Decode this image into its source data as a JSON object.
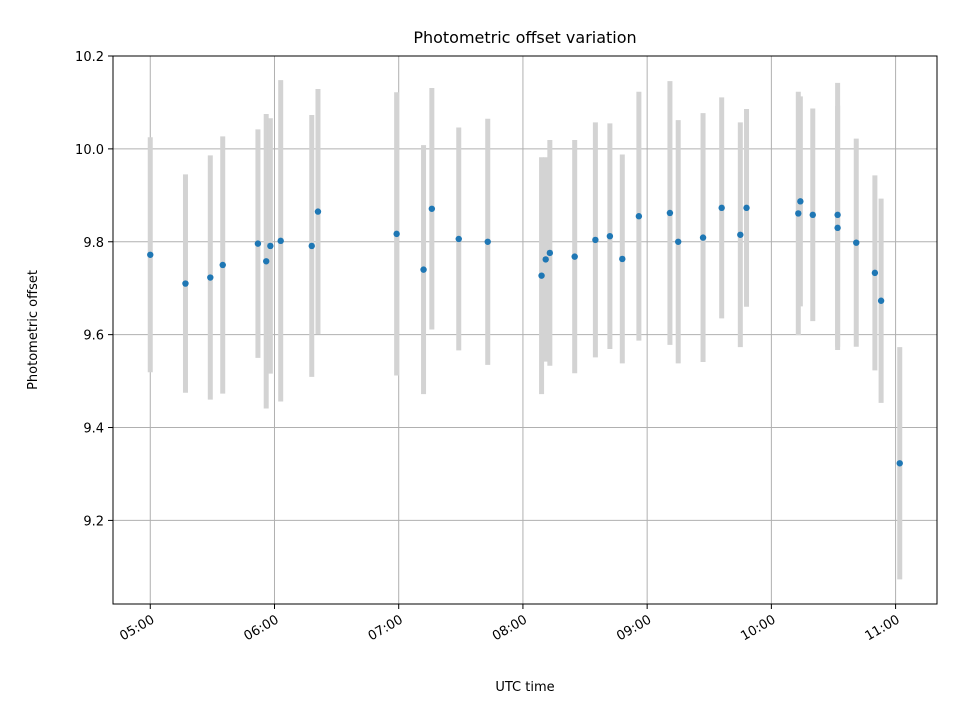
{
  "chart_data": {
    "type": "scatter",
    "title": "Photometric offset variation",
    "xlabel": "UTC time",
    "ylabel": "Photometric offset",
    "xlim": [
      "04:42",
      "11:20"
    ],
    "ylim": [
      9.02,
      10.2
    ],
    "x_ticks": [
      "05:00",
      "06:00",
      "07:00",
      "08:00",
      "09:00",
      "10:00",
      "11:00"
    ],
    "y_ticks": [
      9.2,
      9.4,
      9.6,
      9.8,
      10.0,
      10.2
    ],
    "y_tick_labels": [
      "9.2",
      "9.4",
      "9.6",
      "9.8",
      "10.0",
      "10.2"
    ],
    "grid": true,
    "colors": {
      "point": "#1f77b4",
      "errorbar": "#d3d3d3"
    },
    "points": [
      {
        "x": "05:00",
        "y": 9.772,
        "yerr": 0.253
      },
      {
        "x": "05:17",
        "y": 9.71,
        "yerr": 0.235
      },
      {
        "x": "05:29",
        "y": 9.723,
        "yerr": 0.263
      },
      {
        "x": "05:35",
        "y": 9.75,
        "yerr": 0.277
      },
      {
        "x": "05:52",
        "y": 9.796,
        "yerr": 0.246
      },
      {
        "x": "05:56",
        "y": 9.758,
        "yerr": 0.317
      },
      {
        "x": "05:58",
        "y": 9.791,
        "yerr": 0.275
      },
      {
        "x": "06:03",
        "y": 9.802,
        "yerr": 0.346
      },
      {
        "x": "06:18",
        "y": 9.791,
        "yerr": 0.282
      },
      {
        "x": "06:21",
        "y": 9.865,
        "yerr": 0.264
      },
      {
        "x": "06:59",
        "y": 9.817,
        "yerr": 0.305
      },
      {
        "x": "07:12",
        "y": 9.74,
        "yerr": 0.268
      },
      {
        "x": "07:16",
        "y": 9.871,
        "yerr": 0.26
      },
      {
        "x": "07:29",
        "y": 9.806,
        "yerr": 0.24
      },
      {
        "x": "07:43",
        "y": 9.8,
        "yerr": 0.265
      },
      {
        "x": "08:09",
        "y": 9.727,
        "yerr": 0.255
      },
      {
        "x": "08:11",
        "y": 9.762,
        "yerr": 0.22
      },
      {
        "x": "08:13",
        "y": 9.776,
        "yerr": 0.243
      },
      {
        "x": "08:25",
        "y": 9.768,
        "yerr": 0.251
      },
      {
        "x": "08:35",
        "y": 9.804,
        "yerr": 0.253
      },
      {
        "x": "08:42",
        "y": 9.812,
        "yerr": 0.243
      },
      {
        "x": "08:48",
        "y": 9.763,
        "yerr": 0.225
      },
      {
        "x": "08:56",
        "y": 9.855,
        "yerr": 0.268
      },
      {
        "x": "09:11",
        "y": 9.862,
        "yerr": 0.284
      },
      {
        "x": "09:15",
        "y": 9.8,
        "yerr": 0.262
      },
      {
        "x": "09:27",
        "y": 9.809,
        "yerr": 0.268
      },
      {
        "x": "09:36",
        "y": 9.873,
        "yerr": 0.238
      },
      {
        "x": "09:45",
        "y": 9.815,
        "yerr": 0.242
      },
      {
        "x": "09:48",
        "y": 9.873,
        "yerr": 0.213
      },
      {
        "x": "10:13",
        "y": 9.861,
        "yerr": 0.262
      },
      {
        "x": "10:14",
        "y": 9.887,
        "yerr": 0.226
      },
      {
        "x": "10:20",
        "y": 9.858,
        "yerr": 0.229
      },
      {
        "x": "10:32",
        "y": 9.83,
        "yerr": 0.263
      },
      {
        "x": "10:32",
        "y": 9.858,
        "yerr": 0.284
      },
      {
        "x": "10:41",
        "y": 9.798,
        "yerr": 0.224
      },
      {
        "x": "10:50",
        "y": 9.733,
        "yerr": 0.21
      },
      {
        "x": "10:53",
        "y": 9.673,
        "yerr": 0.22
      },
      {
        "x": "11:02",
        "y": 9.323,
        "yerr": 0.25
      }
    ]
  }
}
